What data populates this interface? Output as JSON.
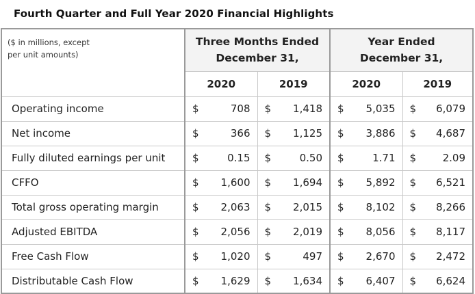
{
  "title": "Fourth Quarter and Full Year 2020 Financial Highlights",
  "caption": [
    "($ in millions, except",
    "per unit amounts)"
  ],
  "groups": [
    {
      "line1": "Three Months Ended",
      "line2": "December 31,"
    },
    {
      "line1": "Year Ended",
      "line2": "December 31,"
    }
  ],
  "years": [
    "2020",
    "2019",
    "2020",
    "2019"
  ],
  "currency": "$",
  "rows": [
    {
      "label": "Operating income",
      "values": [
        "708",
        "1,418",
        "5,035",
        "6,079"
      ]
    },
    {
      "label": "Net income",
      "values": [
        "366",
        "1,125",
        "3,886",
        "4,687"
      ]
    },
    {
      "label": "Fully diluted earnings per unit",
      "values": [
        "0.15",
        "0.50",
        "1.71",
        "2.09"
      ]
    },
    {
      "label": "CFFO",
      "values": [
        "1,600",
        "1,694",
        "5,892",
        "6,521"
      ]
    },
    {
      "label": "Total gross operating margin",
      "values": [
        "2,063",
        "2,015",
        "8,102",
        "8,266"
      ]
    },
    {
      "label": "Adjusted EBITDA",
      "values": [
        "2,056",
        "2,019",
        "8,056",
        "8,117"
      ]
    },
    {
      "label": "Free Cash Flow",
      "values": [
        "1,020",
        "497",
        "2,670",
        "2,472"
      ]
    },
    {
      "label": "Distributable Cash Flow",
      "values": [
        "1,629",
        "1,634",
        "6,407",
        "6,624"
      ]
    }
  ]
}
